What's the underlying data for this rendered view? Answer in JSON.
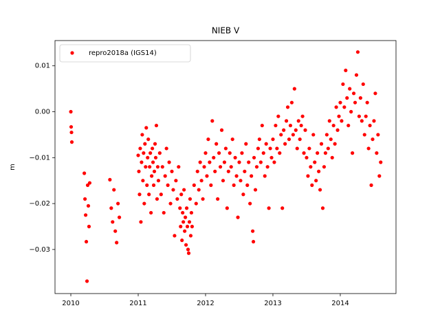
{
  "chart_data": {
    "type": "scatter",
    "title": "NIEB V",
    "y_label": "m",
    "xlim": [
      2009.765,
      2014.827
    ],
    "ylim": [
      -0.0396,
      0.0155
    ],
    "xticks": [
      2010,
      2011,
      2012,
      2013,
      2014
    ],
    "yticks": [
      {
        "value": -0.03,
        "label": "−0.03"
      },
      {
        "value": -0.02,
        "label": "−0.02"
      },
      {
        "value": -0.01,
        "label": "−0.01"
      },
      {
        "value": 0,
        "label": "0.00"
      },
      0.01
    ],
    "legend": "upper left",
    "x": [
      2010.0,
      2010.005,
      2010.01,
      2010.015,
      2010.2,
      2010.21,
      2010.22,
      2010.23,
      2010.24,
      2010.25,
      2010.26,
      2010.27,
      2010.28,
      2010.58,
      2010.6,
      2010.62,
      2010.64,
      2010.66,
      2010.68,
      2010.7,
      2010.72,
      2011.0,
      2011.01,
      2011.02,
      2011.03,
      2011.04,
      2011.05,
      2011.06,
      2011.07,
      2011.08,
      2011.09,
      2011.1,
      2011.11,
      2011.12,
      2011.13,
      2011.14,
      2011.15,
      2011.16,
      2011.17,
      2011.18,
      2011.19,
      2011.2,
      2011.21,
      2011.22,
      2011.23,
      2011.24,
      2011.25,
      2011.26,
      2011.27,
      2011.28,
      2011.29,
      2011.3,
      2011.32,
      2011.34,
      2011.36,
      2011.38,
      2011.4,
      2011.42,
      2011.44,
      2011.46,
      2011.48,
      2011.5,
      2011.52,
      2011.54,
      2011.56,
      2011.58,
      2011.6,
      2011.62,
      2011.63,
      2011.64,
      2011.65,
      2011.66,
      2011.67,
      2011.68,
      2011.69,
      2011.7,
      2011.71,
      2011.72,
      2011.73,
      2011.74,
      2011.75,
      2011.76,
      2011.77,
      2011.78,
      2011.79,
      2011.8,
      2011.83,
      2011.86,
      2011.88,
      2011.9,
      2011.92,
      2011.94,
      2011.96,
      2011.98,
      2012.0,
      2012.02,
      2012.04,
      2012.06,
      2012.08,
      2012.1,
      2012.12,
      2012.14,
      2012.16,
      2012.18,
      2012.2,
      2012.22,
      2012.24,
      2012.26,
      2012.28,
      2012.3,
      2012.32,
      2012.34,
      2012.36,
      2012.38,
      2012.4,
      2012.42,
      2012.44,
      2012.46,
      2012.48,
      2012.5,
      2012.52,
      2012.54,
      2012.56,
      2012.58,
      2012.6,
      2012.62,
      2012.64,
      2012.66,
      2012.68,
      2012.7,
      2012.71,
      2012.72,
      2012.74,
      2012.76,
      2012.78,
      2012.8,
      2012.82,
      2012.84,
      2012.86,
      2012.88,
      2012.9,
      2012.92,
      2012.94,
      2012.96,
      2012.98,
      2013.0,
      2013.02,
      2013.04,
      2013.06,
      2013.08,
      2013.1,
      2013.12,
      2013.14,
      2013.16,
      2013.18,
      2013.2,
      2013.22,
      2013.24,
      2013.26,
      2013.28,
      2013.3,
      2013.32,
      2013.34,
      2013.36,
      2013.38,
      2013.4,
      2013.42,
      2013.44,
      2013.46,
      2013.48,
      2013.5,
      2013.52,
      2013.54,
      2013.56,
      2013.58,
      2013.6,
      2013.62,
      2013.64,
      2013.66,
      2013.68,
      2013.7,
      2013.72,
      2013.74,
      2013.76,
      2013.78,
      2013.8,
      2013.82,
      2013.84,
      2013.86,
      2013.88,
      2013.9,
      2013.92,
      2013.94,
      2013.96,
      2013.98,
      2014.0,
      2014.02,
      2014.04,
      2014.06,
      2014.08,
      2014.1,
      2014.12,
      2014.14,
      2014.16,
      2014.18,
      2014.2,
      2014.22,
      2014.24,
      2014.26,
      2014.28,
      2014.3,
      2014.32,
      2014.34,
      2014.36,
      2014.38,
      2014.4,
      2014.42,
      2014.44,
      2014.46,
      2014.48,
      2014.5,
      2014.52,
      2014.54,
      2014.56,
      2014.58,
      2014.6
    ],
    "series": [
      {
        "name": "repro2018a (IGS14)",
        "color": "#ff0000",
        "values": [
          0.0,
          -0.0033,
          -0.0045,
          -0.0066,
          -0.0134,
          -0.019,
          -0.0225,
          -0.0283,
          -0.0369,
          -0.016,
          -0.0205,
          -0.025,
          -0.0155,
          -0.0148,
          -0.021,
          -0.024,
          -0.017,
          -0.026,
          -0.0285,
          -0.02,
          -0.023,
          -0.0095,
          -0.013,
          -0.018,
          -0.008,
          -0.024,
          -0.011,
          -0.005,
          -0.015,
          -0.009,
          -0.02,
          -0.007,
          -0.012,
          -0.0035,
          -0.016,
          -0.01,
          -0.006,
          -0.018,
          -0.012,
          -0.009,
          -0.022,
          -0.014,
          -0.008,
          -0.011,
          -0.016,
          -0.013,
          -0.007,
          -0.01,
          -0.003,
          -0.019,
          -0.012,
          -0.015,
          -0.009,
          -0.018,
          -0.012,
          -0.022,
          -0.014,
          -0.008,
          -0.016,
          -0.011,
          -0.02,
          -0.013,
          -0.017,
          -0.027,
          -0.015,
          -0.019,
          -0.012,
          -0.021,
          -0.025,
          -0.018,
          -0.028,
          -0.022,
          -0.024,
          -0.017,
          -0.026,
          -0.023,
          -0.029,
          -0.021,
          -0.025,
          -0.03,
          -0.0308,
          -0.024,
          -0.019,
          -0.027,
          -0.022,
          -0.025,
          -0.016,
          -0.02,
          -0.013,
          -0.017,
          -0.011,
          -0.015,
          -0.019,
          -0.012,
          -0.009,
          -0.014,
          -0.006,
          -0.011,
          -0.016,
          -0.002,
          -0.01,
          -0.013,
          -0.007,
          -0.019,
          -0.009,
          -0.012,
          -0.004,
          -0.015,
          -0.011,
          -0.008,
          -0.021,
          -0.013,
          -0.009,
          -0.012,
          -0.006,
          -0.016,
          -0.01,
          -0.014,
          -0.023,
          -0.011,
          -0.015,
          -0.009,
          -0.018,
          -0.013,
          -0.007,
          -0.016,
          -0.011,
          -0.02,
          -0.014,
          -0.026,
          -0.0283,
          -0.01,
          -0.017,
          -0.012,
          -0.008,
          -0.006,
          -0.011,
          -0.003,
          -0.009,
          -0.014,
          -0.007,
          -0.012,
          -0.021,
          -0.008,
          -0.01,
          -0.006,
          -0.011,
          -0.003,
          -0.008,
          -0.001,
          -0.009,
          -0.005,
          -0.021,
          -0.004,
          -0.007,
          -0.002,
          0.001,
          -0.006,
          -0.003,
          0.002,
          -0.005,
          0.005,
          -0.004,
          -0.008,
          -0.002,
          -0.006,
          -0.003,
          -0.001,
          -0.009,
          -0.004,
          -0.01,
          -0.014,
          -0.008,
          -0.012,
          -0.016,
          -0.005,
          -0.011,
          -0.015,
          -0.009,
          -0.013,
          -0.017,
          -0.007,
          -0.021,
          -0.012,
          -0.009,
          -0.005,
          -0.008,
          -0.002,
          -0.006,
          -0.01,
          -0.003,
          -0.007,
          0.001,
          -0.004,
          -0.001,
          0.002,
          -0.002,
          0.006,
          0.001,
          0.009,
          0.003,
          -0.003,
          0.005,
          0.0,
          -0.009,
          0.004,
          0.002,
          0.008,
          0.013,
          -0.001,
          0.003,
          -0.002,
          0.006,
          -0.005,
          -0.001,
          0.002,
          -0.008,
          -0.003,
          -0.016,
          -0.006,
          -0.002,
          0.004,
          -0.009,
          -0.005,
          -0.014,
          -0.011
        ]
      }
    ]
  }
}
